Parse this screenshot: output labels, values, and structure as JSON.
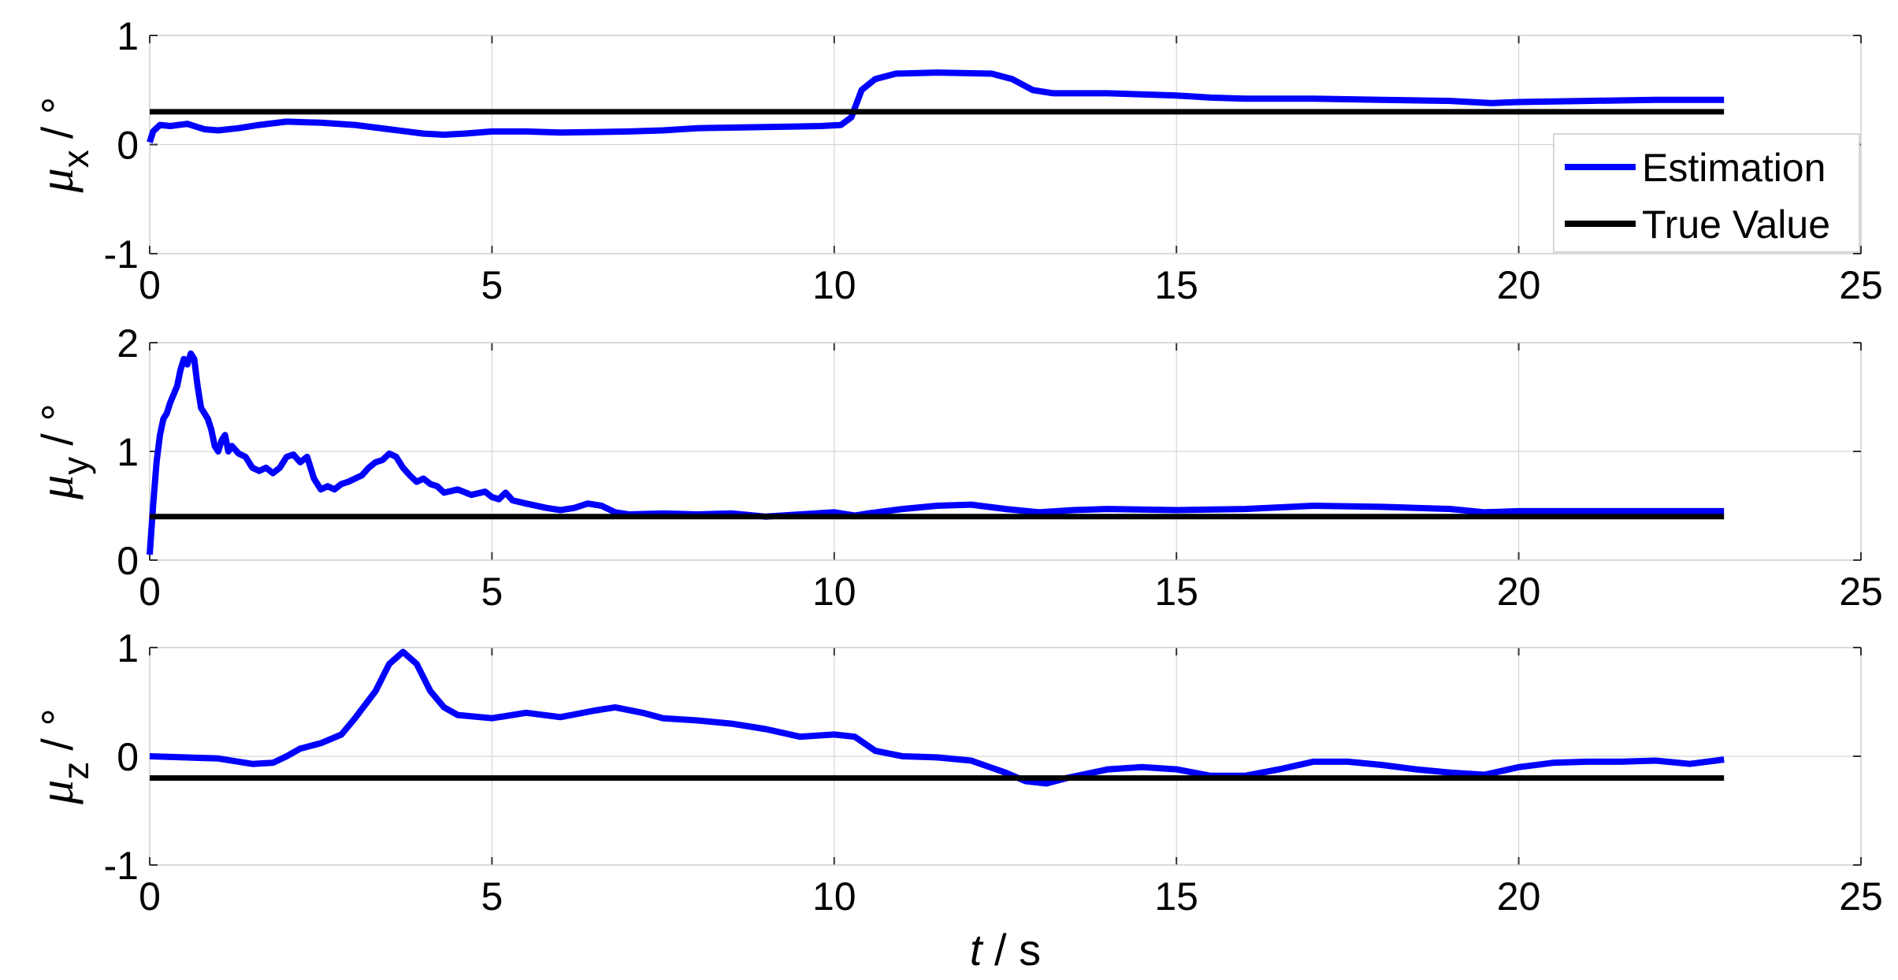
{
  "chart_data": [
    {
      "type": "line",
      "ylabel": {
        "symbol": "μ",
        "subscript": "x",
        "unit": "/ °"
      },
      "xlim": [
        0,
        25
      ],
      "ylim": [
        -1,
        1
      ],
      "xticks": [
        "0",
        "5",
        "10",
        "15",
        "20",
        "25"
      ],
      "yticks": [
        "-1",
        "0",
        "1"
      ],
      "grid": true,
      "legend": {
        "placement": "right",
        "entries": [
          "Estimation",
          "True Value"
        ]
      },
      "series": [
        {
          "name": "Estimation",
          "color": "#0000ff",
          "points": [
            [
              0,
              0.02
            ],
            [
              0.05,
              0.12
            ],
            [
              0.15,
              0.18
            ],
            [
              0.3,
              0.17
            ],
            [
              0.55,
              0.19
            ],
            [
              0.65,
              0.17
            ],
            [
              0.8,
              0.14
            ],
            [
              1.0,
              0.13
            ],
            [
              1.3,
              0.15
            ],
            [
              1.6,
              0.18
            ],
            [
              2.0,
              0.21
            ],
            [
              2.5,
              0.2
            ],
            [
              3.0,
              0.18
            ],
            [
              3.5,
              0.14
            ],
            [
              4.0,
              0.1
            ],
            [
              4.3,
              0.09
            ],
            [
              4.6,
              0.1
            ],
            [
              5.0,
              0.12
            ],
            [
              5.5,
              0.12
            ],
            [
              6.0,
              0.11
            ],
            [
              7.0,
              0.12
            ],
            [
              7.5,
              0.13
            ],
            [
              8.0,
              0.15
            ],
            [
              9.0,
              0.16
            ],
            [
              9.8,
              0.17
            ],
            [
              10.1,
              0.18
            ],
            [
              10.25,
              0.25
            ],
            [
              10.4,
              0.5
            ],
            [
              10.6,
              0.6
            ],
            [
              10.9,
              0.65
            ],
            [
              11.5,
              0.66
            ],
            [
              12.3,
              0.65
            ],
            [
              12.6,
              0.6
            ],
            [
              12.9,
              0.5
            ],
            [
              13.2,
              0.47
            ],
            [
              14.0,
              0.47
            ],
            [
              15.0,
              0.45
            ],
            [
              15.5,
              0.43
            ],
            [
              16.0,
              0.42
            ],
            [
              17.0,
              0.42
            ],
            [
              18.0,
              0.41
            ],
            [
              19.0,
              0.4
            ],
            [
              19.6,
              0.38
            ],
            [
              20.0,
              0.39
            ],
            [
              21.0,
              0.4
            ],
            [
              22.0,
              0.41
            ],
            [
              23.0,
              0.41
            ]
          ]
        },
        {
          "name": "True Value",
          "color": "#000000",
          "points": [
            [
              0,
              0.3
            ],
            [
              23,
              0.3
            ]
          ]
        }
      ]
    },
    {
      "type": "line",
      "ylabel": {
        "symbol": "μ",
        "subscript": "y",
        "unit": "/ °"
      },
      "xlim": [
        0,
        25
      ],
      "ylim": [
        0,
        2
      ],
      "xticks": [
        "0",
        "5",
        "10",
        "15",
        "20",
        "25"
      ],
      "yticks": [
        "0",
        "1",
        "2"
      ],
      "grid": true,
      "series": [
        {
          "name": "Estimation",
          "color": "#0000ff",
          "points": [
            [
              0,
              0.05
            ],
            [
              0.05,
              0.5
            ],
            [
              0.1,
              0.9
            ],
            [
              0.15,
              1.15
            ],
            [
              0.2,
              1.3
            ],
            [
              0.25,
              1.35
            ],
            [
              0.3,
              1.45
            ],
            [
              0.4,
              1.6
            ],
            [
              0.45,
              1.75
            ],
            [
              0.5,
              1.85
            ],
            [
              0.55,
              1.8
            ],
            [
              0.6,
              1.9
            ],
            [
              0.65,
              1.85
            ],
            [
              0.7,
              1.6
            ],
            [
              0.75,
              1.4
            ],
            [
              0.8,
              1.35
            ],
            [
              0.85,
              1.3
            ],
            [
              0.9,
              1.2
            ],
            [
              0.95,
              1.05
            ],
            [
              1.0,
              1.0
            ],
            [
              1.05,
              1.1
            ],
            [
              1.1,
              1.15
            ],
            [
              1.15,
              1.0
            ],
            [
              1.2,
              1.05
            ],
            [
              1.3,
              0.98
            ],
            [
              1.4,
              0.95
            ],
            [
              1.5,
              0.85
            ],
            [
              1.6,
              0.82
            ],
            [
              1.7,
              0.85
            ],
            [
              1.8,
              0.8
            ],
            [
              1.9,
              0.85
            ],
            [
              2.0,
              0.95
            ],
            [
              2.1,
              0.97
            ],
            [
              2.2,
              0.9
            ],
            [
              2.3,
              0.95
            ],
            [
              2.4,
              0.75
            ],
            [
              2.5,
              0.65
            ],
            [
              2.6,
              0.68
            ],
            [
              2.7,
              0.65
            ],
            [
              2.8,
              0.7
            ],
            [
              2.9,
              0.72
            ],
            [
              3.0,
              0.75
            ],
            [
              3.1,
              0.78
            ],
            [
              3.2,
              0.85
            ],
            [
              3.3,
              0.9
            ],
            [
              3.4,
              0.92
            ],
            [
              3.5,
              0.98
            ],
            [
              3.6,
              0.95
            ],
            [
              3.7,
              0.85
            ],
            [
              3.8,
              0.78
            ],
            [
              3.9,
              0.72
            ],
            [
              4.0,
              0.75
            ],
            [
              4.1,
              0.7
            ],
            [
              4.2,
              0.68
            ],
            [
              4.3,
              0.62
            ],
            [
              4.5,
              0.65
            ],
            [
              4.7,
              0.6
            ],
            [
              4.9,
              0.63
            ],
            [
              5.0,
              0.58
            ],
            [
              5.1,
              0.56
            ],
            [
              5.2,
              0.62
            ],
            [
              5.3,
              0.55
            ],
            [
              5.5,
              0.52
            ],
            [
              5.8,
              0.48
            ],
            [
              6.0,
              0.46
            ],
            [
              6.2,
              0.48
            ],
            [
              6.4,
              0.52
            ],
            [
              6.6,
              0.5
            ],
            [
              6.8,
              0.44
            ],
            [
              7.0,
              0.42
            ],
            [
              7.5,
              0.43
            ],
            [
              8.0,
              0.42
            ],
            [
              8.5,
              0.43
            ],
            [
              9.0,
              0.4
            ],
            [
              9.5,
              0.42
            ],
            [
              10.0,
              0.44
            ],
            [
              10.3,
              0.41
            ],
            [
              10.5,
              0.43
            ],
            [
              11.0,
              0.47
            ],
            [
              11.5,
              0.5
            ],
            [
              12.0,
              0.51
            ],
            [
              12.5,
              0.47
            ],
            [
              13.0,
              0.44
            ],
            [
              13.5,
              0.46
            ],
            [
              14.0,
              0.47
            ],
            [
              15.0,
              0.46
            ],
            [
              16.0,
              0.47
            ],
            [
              17.0,
              0.5
            ],
            [
              18.0,
              0.49
            ],
            [
              19.0,
              0.47
            ],
            [
              19.5,
              0.44
            ],
            [
              20.0,
              0.45
            ],
            [
              21.0,
              0.45
            ],
            [
              22.0,
              0.45
            ],
            [
              23.0,
              0.45
            ]
          ]
        },
        {
          "name": "True Value",
          "color": "#000000",
          "points": [
            [
              0,
              0.4
            ],
            [
              23,
              0.4
            ]
          ]
        }
      ]
    },
    {
      "type": "line",
      "ylabel": {
        "symbol": "μ",
        "subscript": "z",
        "unit": "/ °"
      },
      "xlabel": {
        "var": "t",
        "unit": " / s"
      },
      "xlim": [
        0,
        25
      ],
      "ylim": [
        -1,
        1
      ],
      "xticks": [
        "0",
        "5",
        "10",
        "15",
        "20",
        "25"
      ],
      "yticks": [
        "-1",
        "0",
        "1"
      ],
      "grid": true,
      "series": [
        {
          "name": "Estimation",
          "color": "#0000ff",
          "points": [
            [
              0,
              0.0
            ],
            [
              0.5,
              -0.01
            ],
            [
              1.0,
              -0.02
            ],
            [
              1.5,
              -0.07
            ],
            [
              1.8,
              -0.06
            ],
            [
              2.0,
              0.0
            ],
            [
              2.2,
              0.07
            ],
            [
              2.5,
              0.12
            ],
            [
              2.8,
              0.2
            ],
            [
              3.0,
              0.35
            ],
            [
              3.3,
              0.6
            ],
            [
              3.5,
              0.85
            ],
            [
              3.7,
              0.96
            ],
            [
              3.9,
              0.85
            ],
            [
              4.1,
              0.6
            ],
            [
              4.3,
              0.45
            ],
            [
              4.5,
              0.38
            ],
            [
              5.0,
              0.35
            ],
            [
              5.5,
              0.4
            ],
            [
              6.0,
              0.36
            ],
            [
              6.5,
              0.42
            ],
            [
              6.8,
              0.45
            ],
            [
              7.2,
              0.4
            ],
            [
              7.5,
              0.35
            ],
            [
              8.0,
              0.33
            ],
            [
              8.5,
              0.3
            ],
            [
              9.0,
              0.25
            ],
            [
              9.5,
              0.18
            ],
            [
              10.0,
              0.2
            ],
            [
              10.3,
              0.18
            ],
            [
              10.6,
              0.05
            ],
            [
              11.0,
              0.0
            ],
            [
              11.5,
              -0.01
            ],
            [
              12.0,
              -0.04
            ],
            [
              12.5,
              -0.15
            ],
            [
              12.8,
              -0.23
            ],
            [
              13.1,
              -0.25
            ],
            [
              13.4,
              -0.2
            ],
            [
              14.0,
              -0.12
            ],
            [
              14.5,
              -0.1
            ],
            [
              15.0,
              -0.12
            ],
            [
              15.5,
              -0.18
            ],
            [
              16.0,
              -0.18
            ],
            [
              16.5,
              -0.12
            ],
            [
              17.0,
              -0.05
            ],
            [
              17.5,
              -0.05
            ],
            [
              18.0,
              -0.08
            ],
            [
              18.5,
              -0.12
            ],
            [
              19.0,
              -0.15
            ],
            [
              19.5,
              -0.17
            ],
            [
              20.0,
              -0.1
            ],
            [
              20.5,
              -0.06
            ],
            [
              21.0,
              -0.05
            ],
            [
              21.5,
              -0.05
            ],
            [
              22.0,
              -0.04
            ],
            [
              22.5,
              -0.07
            ],
            [
              23.0,
              -0.03
            ]
          ]
        },
        {
          "name": "True Value",
          "color": "#000000",
          "points": [
            [
              0,
              -0.2
            ],
            [
              23,
              -0.2
            ]
          ]
        }
      ]
    }
  ]
}
